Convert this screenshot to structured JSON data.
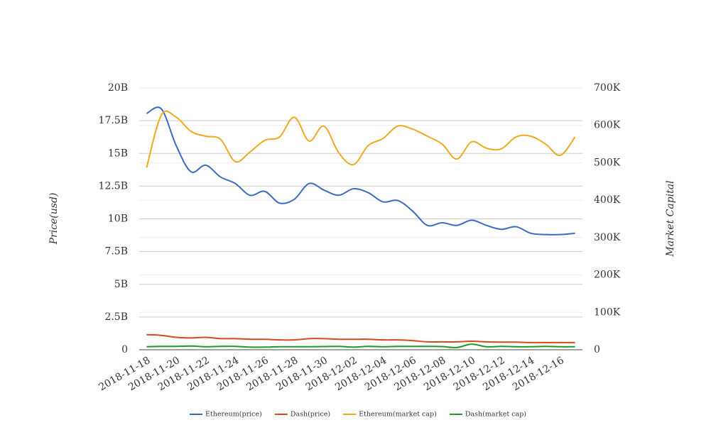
{
  "chart_data": {
    "type": "line",
    "categories": [
      "2018-11-18",
      null,
      "2018-11-20",
      null,
      "2018-11-22",
      null,
      "2018-11-24",
      null,
      "2018-11-26",
      null,
      "2018-11-28",
      null,
      "2018-11-30",
      null,
      "2018-12-02",
      null,
      "2018-12-04",
      null,
      "2018-12-06",
      null,
      "2018-12-08",
      null,
      "2018-12-10",
      null,
      "2018-12-12",
      null,
      "2018-12-14",
      null,
      "2018-12-16",
      null
    ],
    "y_label": "Price(usd)",
    "y2_label": "Market Capital",
    "ylim": [
      0,
      20000000000
    ],
    "yticks": [
      0,
      {
        "value": 2500000000,
        "label": "2.5B"
      },
      {
        "value": 5000000000,
        "label": "5B"
      },
      {
        "value": 7500000000,
        "label": "7.5B"
      },
      {
        "value": 10000000000,
        "label": "10B"
      },
      {
        "value": 12500000000,
        "label": "12.5B"
      },
      {
        "value": 15000000000,
        "label": "15B"
      },
      {
        "value": 17500000000,
        "label": "17.5B"
      },
      {
        "value": 20000000000,
        "label": "20B"
      }
    ],
    "y2lim": [
      0,
      700000
    ],
    "y2ticks": [
      0,
      {
        "value": 100000,
        "label": "100K"
      },
      {
        "value": 200000,
        "label": "200K"
      },
      {
        "value": 300000,
        "label": "300K"
      },
      {
        "value": 400000,
        "label": "400K"
      },
      {
        "value": 500000,
        "label": "500K"
      },
      {
        "value": 600000,
        "label": "600K"
      },
      {
        "value": 700000,
        "label": "700K"
      }
    ],
    "grid": true,
    "legend": "bottom",
    "series": [
      {
        "name": "Ethereum(price)",
        "color": "#3a6bc4",
        "values": [
          18050000000,
          18400000000,
          15600000000,
          13600000000,
          14100000000,
          13200000000,
          12700000000,
          11800000000,
          12100000000,
          11200000000,
          11500000000,
          12700000000,
          12200000000,
          11800000000,
          12300000000,
          12000000000,
          11300000000,
          11400000000,
          10600000000,
          9500000000,
          9700000000,
          9500000000,
          9900000000,
          9500000000,
          9200000000,
          9400000000,
          8900000000,
          8800000000,
          8800000000,
          8900000000
        ]
      },
      {
        "name": "Dash(price)",
        "color": "#d9481f",
        "values": [
          1150000000,
          1100000000,
          950000000,
          900000000,
          950000000,
          850000000,
          850000000,
          800000000,
          800000000,
          750000000,
          750000000,
          850000000,
          850000000,
          800000000,
          800000000,
          800000000,
          750000000,
          750000000,
          700000000,
          600000000,
          600000000,
          600000000,
          650000000,
          600000000,
          580000000,
          580000000,
          550000000,
          550000000,
          550000000,
          550000000
        ]
      },
      {
        "name": "Ethereum(market cap)",
        "color": "#f0a920",
        "axis": "y2",
        "values": [
          487000,
          628000,
          622000,
          584000,
          571000,
          563000,
          503000,
          529000,
          560000,
          569000,
          622000,
          558000,
          598000,
          527000,
          495000,
          546000,
          565000,
          598000,
          590000,
          571000,
          550000,
          510000,
          556000,
          539000,
          537000,
          569000,
          571000,
          550000,
          520000,
          569000
        ]
      },
      {
        "name": "Dash(market cap)",
        "color": "#1f9a2a",
        "axis": "y2",
        "values": [
          8000,
          9000,
          9000,
          10000,
          8000,
          9000,
          9000,
          7000,
          7000,
          8000,
          8000,
          8000,
          8500,
          9000,
          7000,
          9000,
          8000,
          9000,
          9000,
          9000,
          8500,
          6000,
          15000,
          8000,
          9000,
          8000,
          8000,
          9000,
          8000,
          8000
        ]
      }
    ]
  }
}
